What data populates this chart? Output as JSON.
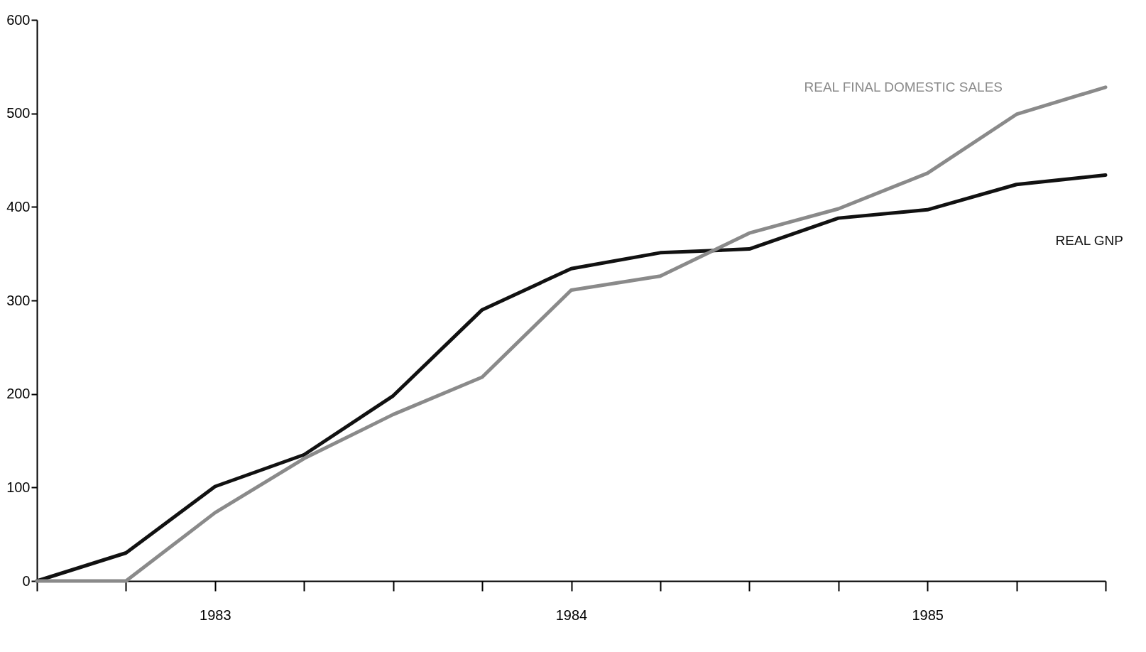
{
  "chart_data": {
    "type": "line",
    "categories": [
      null,
      null,
      "1983",
      null,
      null,
      null,
      "1984",
      null,
      null,
      null,
      "1985",
      null,
      null
    ],
    "series": [
      {
        "name": "REAL GNP",
        "color": "#111111",
        "values": [
          0,
          30,
          101,
          135,
          198,
          290,
          334,
          351,
          355,
          388,
          397,
          424,
          434
        ]
      },
      {
        "name": "REAL FINAL DOMESTIC SALES",
        "color": "#8a8a8a",
        "values": [
          0,
          0,
          73,
          131,
          178,
          218,
          311,
          326,
          372,
          398,
          436,
          499,
          528
        ]
      }
    ],
    "ylim": [
      0,
      600
    ],
    "yticks": [
      0,
      100,
      200,
      300,
      400,
      500,
      600
    ],
    "marker": "none",
    "line_style": "solid"
  }
}
